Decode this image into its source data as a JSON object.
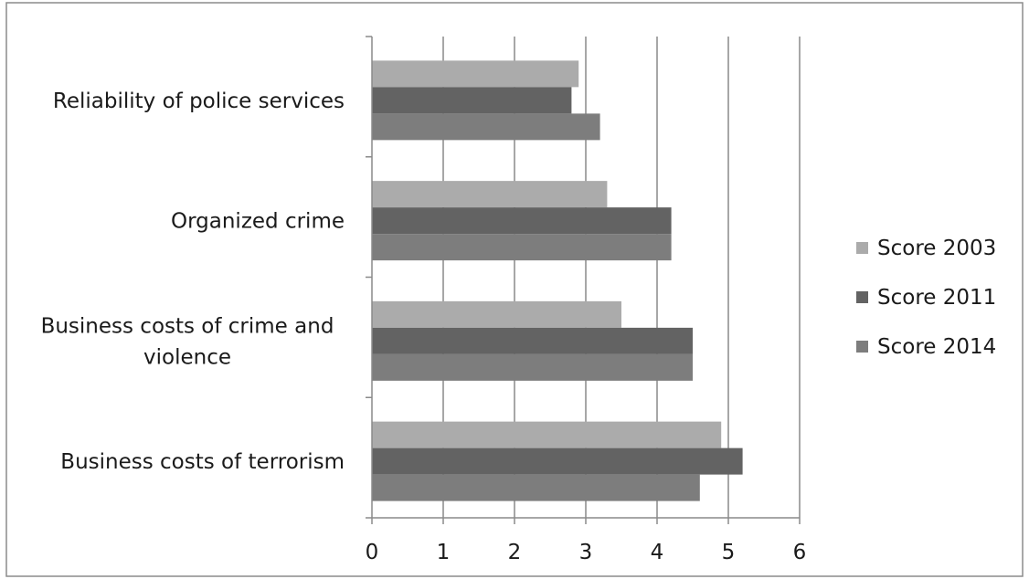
{
  "chart_data": {
    "type": "bar",
    "orientation": "horizontal",
    "categories": [
      [
        "Reliability of police services"
      ],
      [
        "Organized crime"
      ],
      [
        "Business costs of crime and",
        "violence"
      ],
      [
        "Business costs of terrorism"
      ]
    ],
    "series": [
      {
        "name": "Score 2003",
        "color": "#ababab",
        "values": [
          2.9,
          3.3,
          3.5,
          4.9
        ]
      },
      {
        "name": "Score 2011",
        "color": "#636363",
        "values": [
          2.8,
          4.2,
          4.5,
          5.2
        ]
      },
      {
        "name": "Score 2014",
        "color": "#7d7d7d",
        "values": [
          3.2,
          4.2,
          4.5,
          4.6
        ]
      }
    ],
    "xlim": [
      0,
      6
    ],
    "xticks": [
      0,
      1,
      2,
      3,
      4,
      5,
      6
    ],
    "grid": "vertical-major",
    "legend_position": "right",
    "title": "",
    "xlabel": "",
    "ylabel": ""
  }
}
